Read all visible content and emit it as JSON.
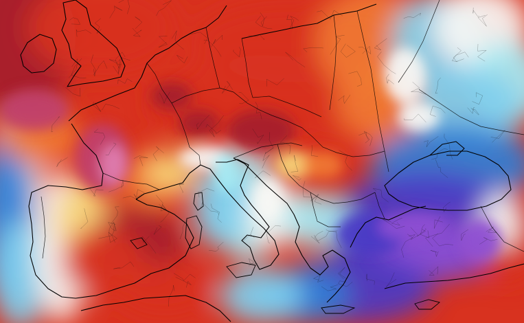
{
  "map": {
    "projection": "regional",
    "field_palette": {
      "dark_blue": "#1f3fa8",
      "blue": "#2f7fd6",
      "light_blue": "#7fd0ef",
      "cyan": "#a6ecf4",
      "white": "#f7f7f4",
      "yellow": "#f6d67a",
      "orange": "#f07a34",
      "red": "#d8321f",
      "dark_red": "#a51f2a",
      "magenta": "#c0406e",
      "pink": "#e07fb1",
      "purple": "#8d4fd2",
      "indigo": "#4b3bc6"
    },
    "outlines": {
      "coast_color": "#000000",
      "border_color": "#000000",
      "region_color": "#111111"
    }
  }
}
